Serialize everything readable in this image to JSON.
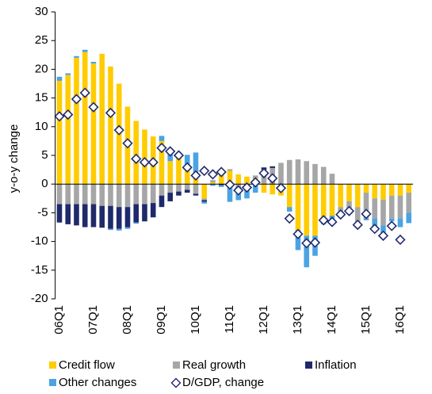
{
  "chart_data": {
    "type": "bar",
    "stacked": true,
    "y_label": "y-o-y change",
    "categories": [
      "06Q1",
      null,
      null,
      null,
      "07Q1",
      null,
      null,
      null,
      "08Q1",
      null,
      null,
      null,
      "09Q1",
      null,
      null,
      null,
      "10Q1",
      null,
      null,
      null,
      "11Q1",
      null,
      null,
      null,
      "12Q1",
      null,
      null,
      null,
      "13Q1",
      null,
      null,
      null,
      "14Q1",
      null,
      null,
      null,
      "15Q1",
      null,
      null,
      null,
      "16Q1",
      null
    ],
    "ylim": [
      -20,
      30
    ],
    "yticks": [
      -20,
      -15,
      -10,
      -5,
      0,
      5,
      10,
      15,
      20,
      25,
      30
    ],
    "grid": false,
    "legend": "bottom",
    "series": [
      {
        "name": "Credit flow",
        "color": "#ffcc00",
        "type": "bar",
        "values": [
          18,
          19,
          22,
          23,
          21,
          22.7,
          20.5,
          17.5,
          13.5,
          11,
          9.5,
          8.3,
          7.5,
          4,
          5,
          3,
          2,
          -2.5,
          0.3,
          1.5,
          2.3,
          1.7,
          1.3,
          1,
          -1.5,
          -1.8,
          -2,
          -4,
          -8,
          -9,
          -9,
          -6,
          -5.5,
          -4,
          -3,
          -4,
          -1.5,
          -2.5,
          -2.7,
          -2,
          -2,
          -1.5
        ]
      },
      {
        "name": "Real growth",
        "color": "#a6a6a6",
        "type": "bar",
        "values": [
          -3.5,
          -3.5,
          -3.5,
          -3.5,
          -3.5,
          -3.8,
          -3.8,
          -4,
          -4,
          -3.5,
          -3.5,
          -3.3,
          -2,
          -1.5,
          -1.3,
          -1,
          -1.7,
          -0.3,
          0.4,
          0.7,
          0.3,
          -0.5,
          -1,
          0.5,
          2.5,
          2.8,
          3.7,
          4.2,
          4.3,
          4,
          3.5,
          3,
          1.8,
          -0.7,
          -1.4,
          -3,
          -4.5,
          -3.5,
          -4.5,
          -4,
          -4,
          -3.5
        ]
      },
      {
        "name": "Inflation",
        "color": "#1f2a6b",
        "type": "bar",
        "values": [
          -3.2,
          -3.5,
          -3.7,
          -4,
          -4,
          -3.8,
          -4,
          -3.8,
          -3.5,
          -3.2,
          -3,
          -2.5,
          -2,
          -1.5,
          -0.7,
          -0.5,
          -0.3,
          -0.3,
          0,
          -0.2,
          -0.3,
          -0.3,
          0,
          0,
          0.4,
          0.3,
          0,
          0,
          0,
          0,
          0,
          0,
          0,
          0,
          0,
          0,
          0,
          0,
          0,
          0,
          0,
          0
        ]
      },
      {
        "name": "Other changes",
        "color": "#4ba3e3",
        "type": "bar",
        "values": [
          0.7,
          0.3,
          0.3,
          0.4,
          0.3,
          0,
          -0.2,
          -0.3,
          -0.3,
          -0.2,
          0,
          0,
          0.9,
          1.3,
          0.5,
          2.1,
          3.5,
          -0.3,
          -0.3,
          -0.3,
          -2.8,
          -2,
          -1.5,
          -1.5,
          0,
          0,
          0,
          -0.8,
          -3.5,
          -5.5,
          -3.5,
          -1,
          -1.5,
          -0.5,
          -0.5,
          0,
          -0.3,
          -1.5,
          -1.5,
          -0.5,
          -1.5,
          -1.8
        ]
      },
      {
        "name": "D/GDP, change",
        "color": "#1f2a6b",
        "type": "scatter",
        "values": [
          11.8,
          12.1,
          14.8,
          15.9,
          13.4,
          null,
          12.4,
          9.4,
          7.1,
          4.4,
          3.8,
          3.8,
          6.3,
          5.7,
          5,
          2.9,
          1.5,
          2.3,
          1.7,
          2.1,
          -0.1,
          -1.1,
          -0.6,
          0.3,
          1.9,
          1.0,
          -0.7,
          -6,
          -8.7,
          -10.3,
          -10.2,
          -6.3,
          -6.6,
          -5.3,
          -4.7,
          -7.1,
          -5.2,
          -7.8,
          -9,
          -7.3,
          -9.7,
          null
        ]
      }
    ]
  }
}
